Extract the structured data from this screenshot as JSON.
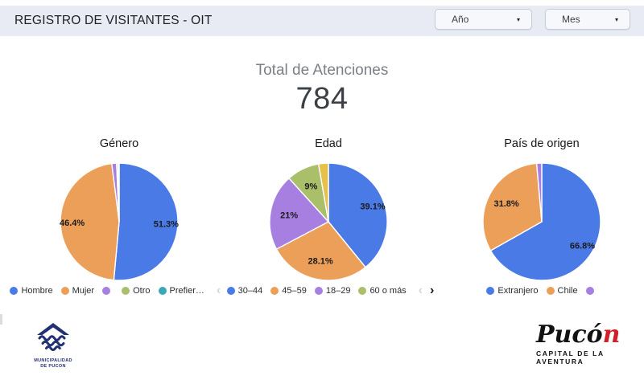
{
  "header": {
    "title": "REGISTRO DE VISITANTES - OIT",
    "filters": [
      {
        "label": "Año",
        "caret": "▾"
      },
      {
        "label": "Mes",
        "caret": "▾"
      }
    ]
  },
  "kpi": {
    "label": "Total de Atenciones",
    "value": "784"
  },
  "chart_data": [
    {
      "type": "pie",
      "title": "Género",
      "slices": [
        {
          "label": "Hombre",
          "value": 51.3,
          "display": "51.3%",
          "color": "#4A7AE6",
          "in_legend": true
        },
        {
          "label": "Mujer",
          "value": 46.4,
          "display": "46.4%",
          "color": "#EC9F58",
          "in_legend": true
        },
        {
          "label": "",
          "value": 1.3,
          "display": "",
          "color": "#A77FE0",
          "in_legend": true
        },
        {
          "label": "Otro",
          "value": 0.4,
          "display": "",
          "color": "#A9BF6A",
          "in_legend": true
        },
        {
          "label": "Prefier…",
          "value": 0.3,
          "display": "",
          "color": "#3BA8B8",
          "in_legend": true
        }
      ],
      "has_pagination": true
    },
    {
      "type": "pie",
      "title": "Edad",
      "slices": [
        {
          "label": "30–44",
          "value": 39.1,
          "display": "39.1%",
          "color": "#4A7AE6",
          "in_legend": true
        },
        {
          "label": "45–59",
          "value": 28.1,
          "display": "28.1%",
          "color": "#EC9F58",
          "in_legend": true
        },
        {
          "label": "18–29",
          "value": 21,
          "display": "21%",
          "color": "#A77FE0",
          "in_legend": true
        },
        {
          "label": "60 o más",
          "value": 9,
          "display": "9%",
          "color": "#A9BF6A",
          "in_legend": true
        },
        {
          "label": "",
          "value": 2.7,
          "display": "",
          "color": "#E6C14C",
          "in_legend": false
        }
      ],
      "has_pagination": true
    },
    {
      "type": "pie",
      "title": "País de origen",
      "slices": [
        {
          "label": "Extranjero",
          "value": 66.8,
          "display": "66.8%",
          "color": "#4A7AE6",
          "in_legend": true
        },
        {
          "label": "Chile",
          "value": 31.8,
          "display": "31.8%",
          "color": "#EC9F58",
          "in_legend": true
        },
        {
          "label": "",
          "value": 1.4,
          "display": "",
          "color": "#A77FE0",
          "in_legend": true
        }
      ],
      "has_pagination": false
    }
  ],
  "legend_nav": {
    "prev": "‹",
    "next": "›"
  },
  "footer": {
    "municipal": {
      "line1": "MUNICIPALIDAD",
      "line2": "DE PUCON"
    },
    "brand": {
      "name_black": "Pucó",
      "name_red": "n",
      "tagline": "CAPITAL DE LA AVENTURA"
    }
  },
  "colors": {
    "band": "#E8EBF4",
    "accent_blue": "#4A7AE6",
    "accent_orange": "#EC9F58",
    "accent_purple": "#A77FE0",
    "accent_green": "#A9BF6A",
    "accent_yellow": "#E6C14C",
    "accent_teal": "#3BA8B8",
    "brand_red": "#D01F26",
    "navy": "#223173"
  }
}
